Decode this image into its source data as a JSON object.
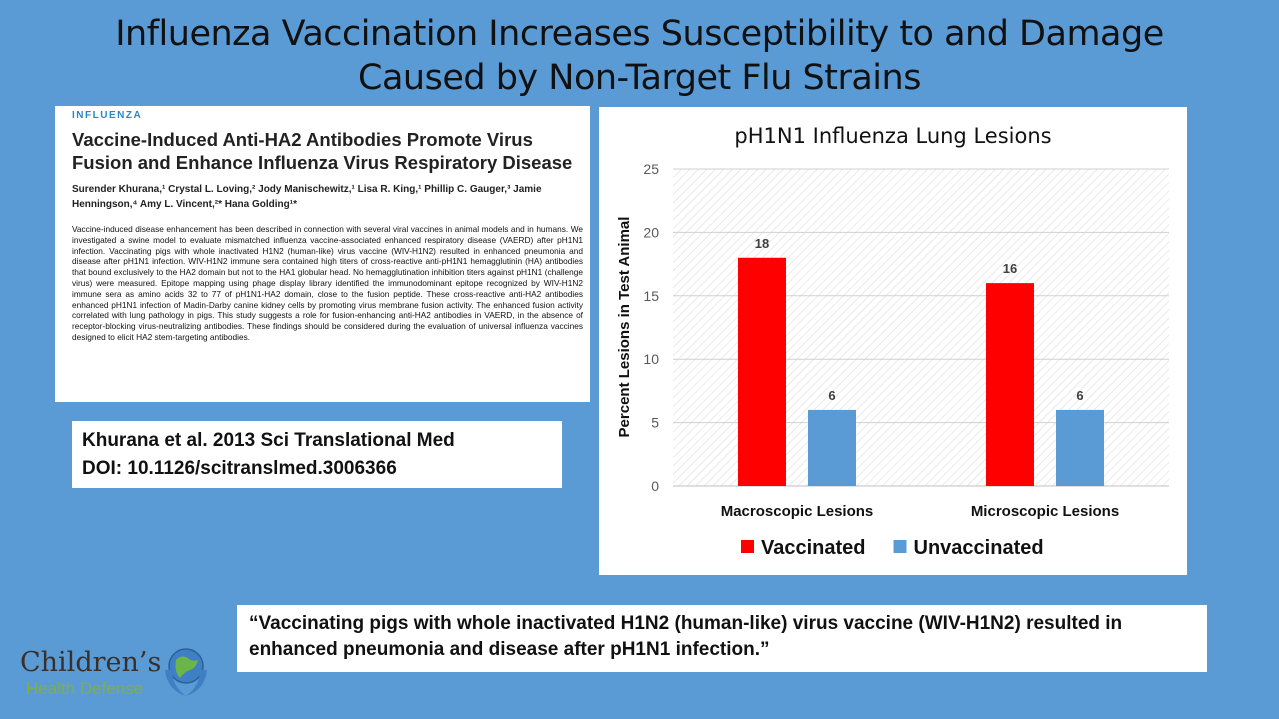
{
  "title": {
    "line1": "Influenza Vaccination Increases Susceptibility to and Damage",
    "line2": "Caused by Non-Target Flu Strains"
  },
  "paper": {
    "section": "INFLUENZA",
    "title": "Vaccine-Induced Anti-HA2 Antibodies Promote Virus Fusion and Enhance Influenza Virus Respiratory Disease",
    "authors": "Surender Khurana,¹ Crystal L. Loving,² Jody Manischewitz,¹ Lisa R. King,¹ Phillip C. Gauger,³ Jamie Henningson,⁴ Amy L. Vincent,²* Hana Golding¹*",
    "abstract": "Vaccine-induced disease enhancement has been described in connection with several viral vaccines in animal models and in humans. We investigated a swine model to evaluate mismatched influenza vaccine-associated enhanced respiratory disease (VAERD) after pH1N1 infection. Vaccinating pigs with whole inactivated H1N2 (human-like) virus vaccine (WIV-H1N2) resulted in enhanced pneumonia and disease after pH1N1 infection. WIV-H1N2 immune sera contained high titers of cross-reactive anti-pH1N1 hemagglutinin (HA) antibodies that bound exclusively to the HA2 domain but not to the HA1 globular head. No hemagglutination inhibition titers against pH1N1 (challenge virus) were measured. Epitope mapping using phage display library identified the immunodominant epitope recognized by WIV-H1N2 immune sera as amino acids 32 to 77 of pH1N1-HA2 domain, close to the fusion peptide. These cross-reactive anti-HA2 antibodies enhanced pH1N1 infection of Madin-Darby canine kidney cells by promoting virus membrane fusion activity. The enhanced fusion activity correlated with lung pathology in pigs. This study suggests a role for fusion-enhancing anti-HA2 antibodies in VAERD, in the absence of receptor-blocking virus-neutralizing antibodies. These findings should be considered during the evaluation of universal influenza vaccines designed to elicit HA2 stem-targeting antibodies."
  },
  "citation": {
    "line1": "Khurana et al. 2013 Sci Translational Med",
    "line2": "DOI: 10.1126/scitranslmed.3006366"
  },
  "quote": "“Vaccinating pigs with whole inactivated H1N2 (human-like) virus vaccine (WIV-H1N2)  resulted in enhanced pneumonia and disease after pH1N1 infection.”",
  "logo": {
    "line1": "Children’s",
    "line2": "Health Defense"
  },
  "colors": {
    "vaccinated": "#ff0000",
    "unvaccinated": "#5b9bd5",
    "background": "#5b9bd5"
  },
  "chart_data": {
    "type": "bar",
    "title": "pH1N1 Influenza Lung Lesions",
    "categories": [
      "Macroscopic Lesions",
      "Microscopic Lesions"
    ],
    "series": [
      {
        "name": "Vaccinated",
        "values": [
          18,
          16
        ]
      },
      {
        "name": "Unvaccinated",
        "values": [
          6,
          6
        ]
      }
    ],
    "xlabel": "",
    "ylabel": "Percent Lesions in Test Animal",
    "ylim": [
      0,
      25
    ],
    "yticks": [
      0,
      5,
      10,
      15,
      20,
      25
    ],
    "grid": true,
    "legend": "bottom"
  }
}
